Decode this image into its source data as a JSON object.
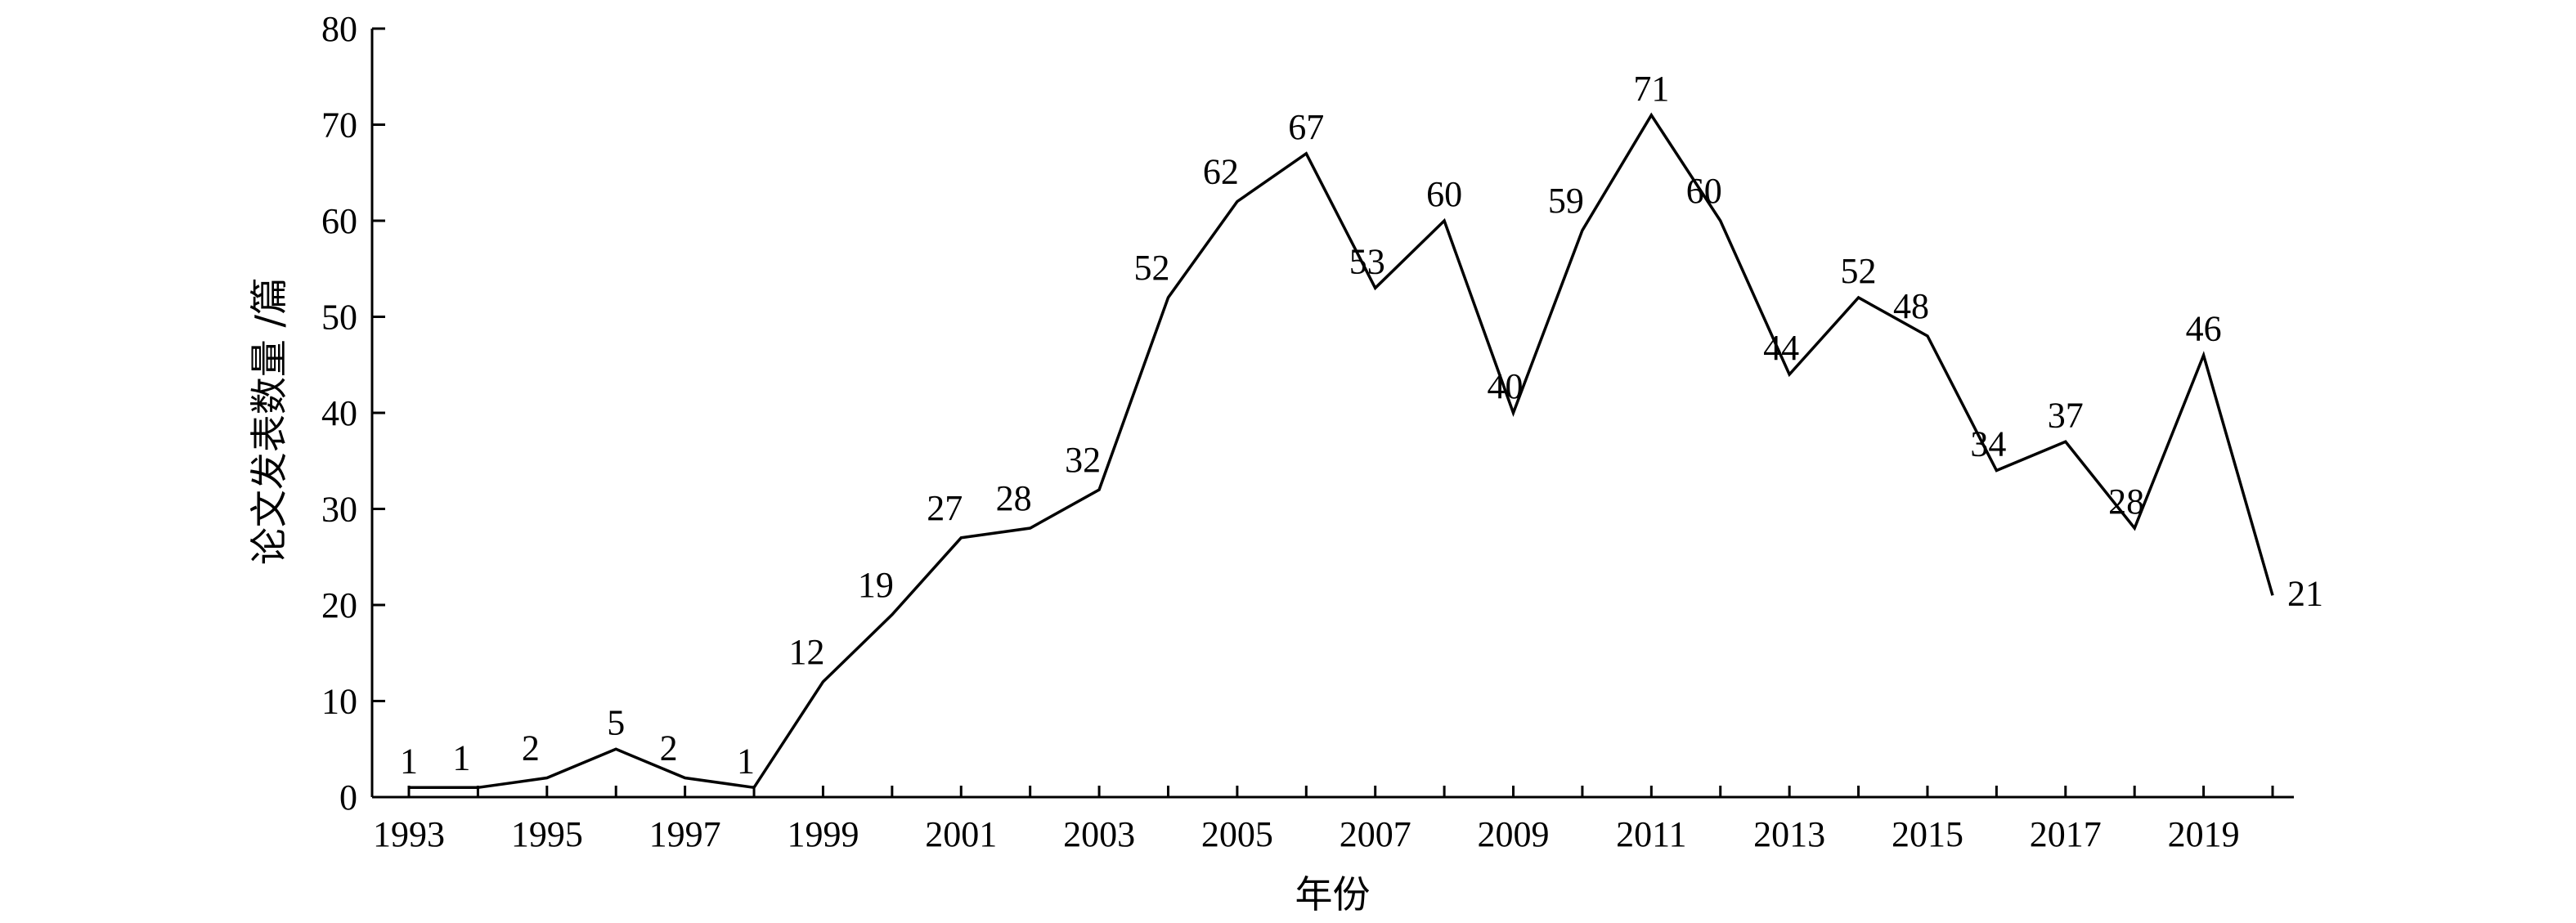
{
  "chart_data": {
    "type": "line",
    "xlabel": "年份",
    "ylabel": "论文发表数量 /篇",
    "ylim": [
      0,
      80
    ],
    "y_ticks": [
      0,
      10,
      20,
      30,
      40,
      50,
      60,
      70,
      80
    ],
    "x_ticks": [
      1993,
      1995,
      1997,
      1999,
      2001,
      2003,
      2005,
      2007,
      2009,
      2011,
      2013,
      2015,
      2017,
      2019
    ],
    "x": [
      1993,
      1994,
      1995,
      1996,
      1997,
      1998,
      1999,
      2000,
      2001,
      2002,
      2003,
      2004,
      2005,
      2006,
      2007,
      2008,
      2009,
      2010,
      2011,
      2012,
      2013,
      2014,
      2015,
      2016,
      2017,
      2018,
      2019,
      2020
    ],
    "values": [
      1,
      1,
      2,
      5,
      2,
      1,
      12,
      19,
      27,
      28,
      32,
      52,
      62,
      67,
      53,
      60,
      40,
      59,
      71,
      60,
      44,
      52,
      48,
      34,
      37,
      28,
      46,
      21
    ],
    "labels": [
      "1",
      "1",
      "2",
      "5",
      "2",
      "1",
      "12",
      "19",
      "27",
      "28",
      "32",
      "52",
      "62",
      "67",
      "53",
      "60",
      "40",
      "59",
      "71",
      "60",
      "44",
      "52",
      "48",
      "34",
      "37",
      "28",
      "46",
      "21"
    ],
    "grid": false,
    "legend": "none",
    "line_color": "#000000"
  }
}
